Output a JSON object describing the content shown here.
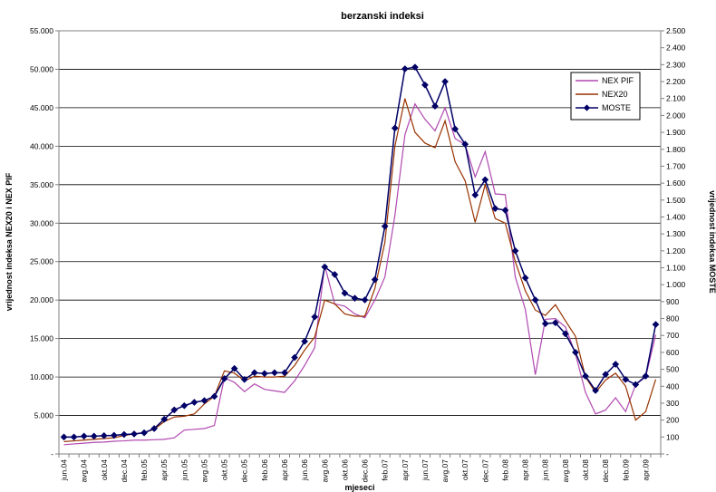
{
  "chart_data": {
    "type": "line",
    "title": "berzanski indeksi",
    "xlabel": "mjeseci",
    "ylabel_left": "vrijednost indeksa NEX20 i NEX PIF",
    "ylabel_right": "vrijednost indeksa MOSTE",
    "x": [
      "jun.04",
      "jul.04",
      "avg.04",
      "sep.04",
      "okt.04",
      "nov.04",
      "dec.04",
      "jan.05",
      "feb.05",
      "mar.05",
      "apr.05",
      "maj.05",
      "jun.05",
      "jul.05",
      "avg.05",
      "sep.05",
      "okt.05",
      "nov.05",
      "dec.05",
      "jan.06",
      "feb.06",
      "mar.06",
      "apr.06",
      "maj.06",
      "jun.06",
      "jul.06",
      "avg.06",
      "sep.06",
      "okt.06",
      "nov.06",
      "dec.06",
      "jan.07",
      "feb.07",
      "mar.07",
      "apr.07",
      "maj.07",
      "jun.07",
      "jul.07",
      "avg.07",
      "sep.07",
      "okt.07",
      "nov.07",
      "dec.07",
      "jan.08",
      "feb.08",
      "mar.08",
      "apr.08",
      "maj.08",
      "jun.08",
      "jul.08",
      "avg.08",
      "sep.08",
      "okt.08",
      "nov.08",
      "dec.08",
      "jan.09",
      "feb.09",
      "mar.09",
      "apr.09",
      "maj.09"
    ],
    "x_tick_labels": [
      "jun.04",
      "avg.04",
      "okt.04",
      "dec.04",
      "feb.05",
      "apr.05",
      "jun.05",
      "avg.05",
      "okt.05",
      "dec.05",
      "feb.06",
      "apr.06",
      "jun.06",
      "avg.06",
      "okt.06",
      "dec.06",
      "feb.07",
      "apr.07",
      "jun.07",
      "avg.07",
      "okt.07",
      "dec.07",
      "feb.08",
      "apr.08",
      "jun.08",
      "avg.08",
      "okt.08",
      "dec.08",
      "feb.09",
      "apr.09"
    ],
    "left_ylim": [
      0,
      55000
    ],
    "left_ticks": [
      "-",
      "5.000",
      "10.000",
      "15.000",
      "20.000",
      "25.000",
      "30.000",
      "35.000",
      "40.000",
      "45.000",
      "50.000",
      "55.000"
    ],
    "right_ylim": [
      0,
      2500
    ],
    "right_ticks": [
      "-",
      "100",
      "200",
      "300",
      "400",
      "500",
      "600",
      "700",
      "800",
      "900",
      "1.000",
      "1.100",
      "1.200",
      "1.300",
      "1.400",
      "1.500",
      "1.600",
      "1.700",
      "1.800",
      "1.900",
      "2.000",
      "2.100",
      "2.200",
      "2.300",
      "2.400",
      "2.500"
    ],
    "grid": true,
    "legend_position": "top-right",
    "series": [
      {
        "name": "NEX PIF",
        "axis": "left",
        "color": "#b048b0",
        "marker": "none",
        "values": [
          1200,
          1300,
          1400,
          1500,
          1550,
          1650,
          1700,
          1800,
          1800,
          1850,
          1900,
          2100,
          3100,
          3200,
          3300,
          3700,
          9900,
          9300,
          8100,
          9100,
          8400,
          8200,
          8000,
          9500,
          11500,
          13800,
          24500,
          19500,
          19200,
          18200,
          17700,
          20000,
          23000,
          31000,
          41500,
          45500,
          43500,
          42000,
          45000,
          41000,
          40200,
          36000,
          39300,
          33800,
          33700,
          23000,
          18800,
          10300,
          17500,
          17600,
          16500,
          13000,
          8000,
          5200,
          5700,
          7300,
          5500,
          9000,
          10000,
          15500
        ]
      },
      {
        "name": "NEX20",
        "axis": "left",
        "color": "#993300",
        "marker": "none",
        "values": [
          1600,
          1700,
          1800,
          1900,
          2000,
          2100,
          2400,
          2600,
          2800,
          3200,
          4200,
          4800,
          4900,
          5200,
          6500,
          7500,
          10800,
          10500,
          9500,
          10100,
          10000,
          10000,
          10100,
          11500,
          13500,
          15200,
          20000,
          19500,
          18200,
          17900,
          17900,
          21500,
          27500,
          40000,
          46200,
          41800,
          40400,
          39800,
          43300,
          38000,
          35500,
          30100,
          35000,
          30600,
          30000,
          25000,
          21200,
          18700,
          18000,
          19400,
          17300,
          15300,
          10000,
          8000,
          9600,
          10500,
          8800,
          4400,
          5500,
          9700
        ]
      },
      {
        "name": "MOSTE",
        "axis": "right",
        "color": "#000066",
        "marker": "diamond",
        "values": [
          100,
          100,
          105,
          105,
          108,
          110,
          115,
          118,
          125,
          150,
          205,
          260,
          285,
          305,
          315,
          340,
          445,
          505,
          440,
          480,
          475,
          480,
          480,
          570,
          665,
          810,
          1105,
          1060,
          950,
          920,
          910,
          1030,
          1345,
          1925,
          2275,
          2285,
          2180,
          2055,
          2200,
          1920,
          1830,
          1530,
          1620,
          1450,
          1440,
          1200,
          1040,
          910,
          770,
          775,
          710,
          600,
          460,
          375,
          470,
          530,
          440,
          410,
          460,
          765
        ]
      }
    ]
  }
}
